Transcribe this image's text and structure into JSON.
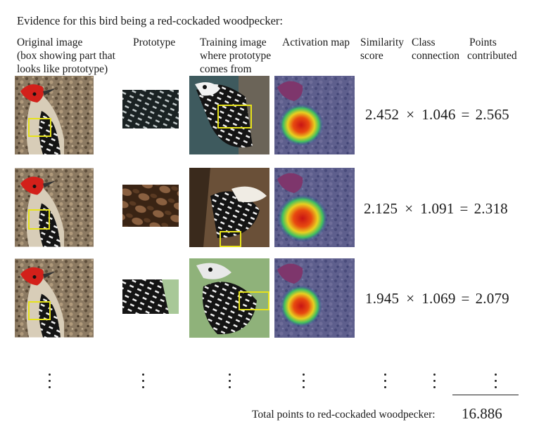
{
  "title": "Evidence for this bird being a red-cockaded woodpecker:",
  "columns": {
    "original": [
      "Original image",
      "(box showing part that",
      "looks like prototype)"
    ],
    "prototype": [
      "Prototype"
    ],
    "training": [
      "Training image",
      "where prototype",
      "comes from"
    ],
    "activation": [
      "Activation map"
    ],
    "similarity": [
      "Similarity",
      "score"
    ],
    "class": [
      "Class",
      "connection"
    ],
    "points": [
      "Points",
      "contributed"
    ]
  },
  "rows": [
    {
      "similarity": "2.452",
      "times": "×",
      "connection": "1.046",
      "equals": "=",
      "points": "2.565"
    },
    {
      "similarity": "2.125",
      "times": "×",
      "connection": "1.091",
      "equals": "=",
      "points": "2.318"
    },
    {
      "similarity": "1.945",
      "times": "×",
      "connection": "1.069",
      "equals": "=",
      "points": "2.079"
    }
  ],
  "total": {
    "label": "Total points to red-cockaded woodpecker:",
    "value": "16.886"
  },
  "colors": {
    "highlight_box": "#e6e21a",
    "background": "#ffffff"
  }
}
